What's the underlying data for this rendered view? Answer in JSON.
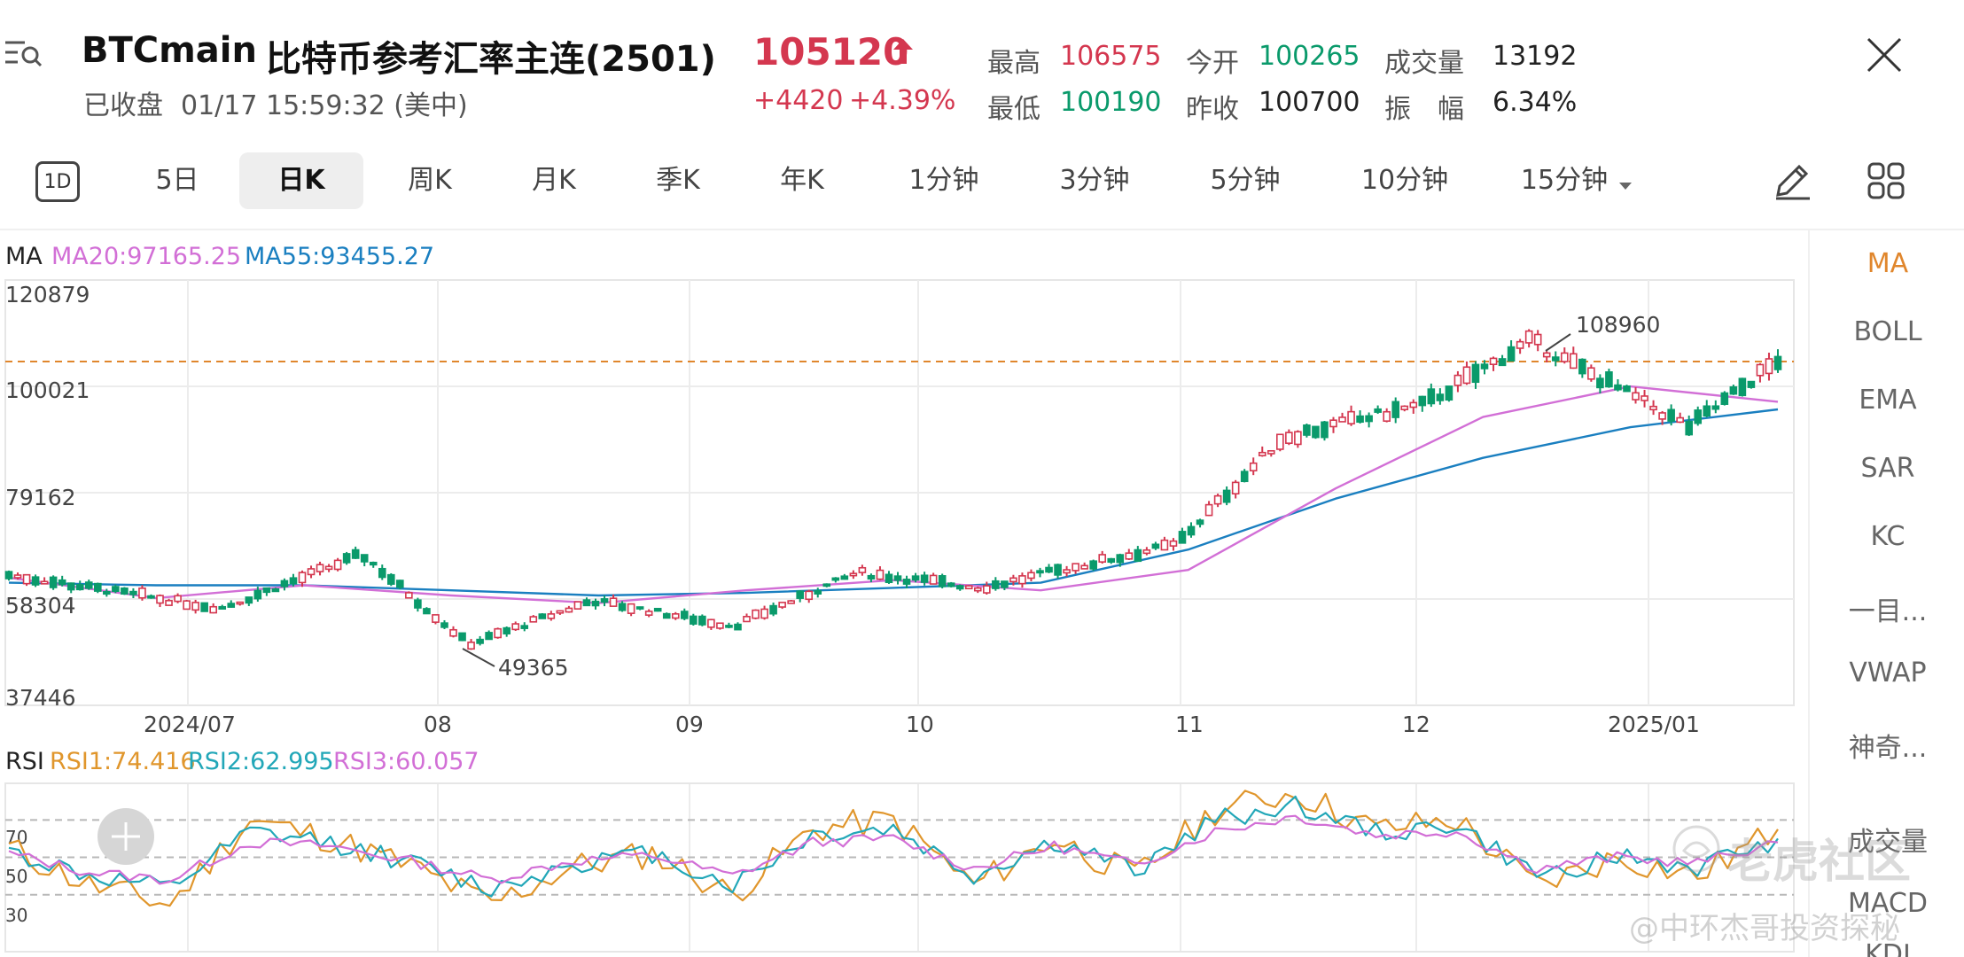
{
  "header": {
    "symbol": "BTCmain",
    "name": "比特币参考汇率主连(2501)",
    "status": "已收盘",
    "datetime": "01/17 15:59:32 (美中)",
    "price": "105120",
    "change": "+4420",
    "change_pct": "+4.39%",
    "stats": {
      "high_label": "最高",
      "high": "106575",
      "open_label": "今开",
      "open": "100265",
      "volume_label": "成交量",
      "volume": "13192",
      "low_label": "最低",
      "low": "100190",
      "prev_label": "昨收",
      "prev": "100700",
      "amp_label": "振　幅",
      "amp": "6.34%"
    }
  },
  "tabs": [
    {
      "label": "1D"
    },
    {
      "label": "5日"
    },
    {
      "label": "日K"
    },
    {
      "label": "周K"
    },
    {
      "label": "月K"
    },
    {
      "label": "季K"
    },
    {
      "label": "年K"
    },
    {
      "label": "1分钟"
    },
    {
      "label": "3分钟"
    },
    {
      "label": "5分钟"
    },
    {
      "label": "10分钟"
    },
    {
      "label": "15分钟"
    }
  ],
  "side": {
    "items": [
      "MA",
      "BOLL",
      "EMA",
      "SAR",
      "KC",
      "一目...",
      "VWAP",
      "神奇...",
      "成交量",
      "MACD",
      "KDJ"
    ]
  },
  "colors": {
    "up": "#d4374f",
    "down": "#0a9a6b",
    "ma20": "#d26fd6",
    "ma55": "#1a7fc0",
    "rsi1": "#e0962c",
    "rsi2": "#22a7b8",
    "rsi3": "#d26fd6",
    "accent": "#e0862c"
  },
  "indicators": {
    "ma_title": "MA",
    "ma20_label": "MA20:97165.25",
    "ma55_label": "MA55:93455.27",
    "rsi_title": "RSI",
    "rsi1_label": "RSI1:74.416",
    "rsi2_label": "RSI2:62.995",
    "rsi3_label": "RSI3:60.057"
  },
  "chart_data": [
    {
      "type": "candlestick",
      "ylim": [
        37446,
        120879
      ],
      "y_ticks": [
        "120879",
        "100021",
        "79162",
        "58304",
        "37446"
      ],
      "x_tick_labels": [
        "2024/07",
        "08",
        "09",
        "10",
        "11",
        "12",
        "2025/01"
      ],
      "annotations": {
        "max": "108960",
        "min": "49365"
      },
      "reference_price": 105120,
      "anchors": {
        "start": 63000,
        "jul_mid": 56500,
        "jul_end": 67000,
        "aug_low": 49365,
        "aug_end": 58000,
        "sep_low": 53000,
        "sep_end": 63500,
        "oct_mid": 60500,
        "oct_end": 69000,
        "nov_mid": 90000,
        "nov_end": 96500,
        "dec_peak": 108960,
        "jan_low": 92000,
        "jan_end": 105120
      },
      "ma20": [
        62500,
        58500,
        61000,
        59000,
        57500,
        60000,
        62000,
        60000,
        64000,
        80000,
        94000,
        100000,
        97000
      ],
      "ma55": [
        61500,
        61000,
        61000,
        60000,
        59000,
        59500,
        60500,
        61500,
        68000,
        78000,
        86000,
        92000,
        95500
      ]
    },
    {
      "type": "line",
      "y_ticks": [
        "70",
        "50",
        "30"
      ],
      "series": [
        {
          "name": "RSI1",
          "values": [
            55,
            35,
            25,
            70,
            60,
            45,
            25,
            45,
            52,
            30,
            65,
            70,
            35,
            60,
            40,
            75,
            85,
            65,
            70,
            35,
            50,
            40,
            65
          ]
        },
        {
          "name": "RSI2",
          "values": [
            53,
            40,
            33,
            63,
            58,
            47,
            33,
            47,
            52,
            35,
            62,
            65,
            40,
            58,
            43,
            70,
            78,
            63,
            67,
            40,
            50,
            44,
            60
          ]
        },
        {
          "name": "RSI3",
          "values": [
            52,
            42,
            38,
            58,
            56,
            48,
            38,
            48,
            51,
            40,
            58,
            60,
            44,
            56,
            46,
            64,
            72,
            62,
            64,
            44,
            50,
            47,
            58
          ]
        }
      ]
    }
  ],
  "watermark": {
    "logo": "老虎社区",
    "credit": "@中环杰哥投资探秘"
  }
}
